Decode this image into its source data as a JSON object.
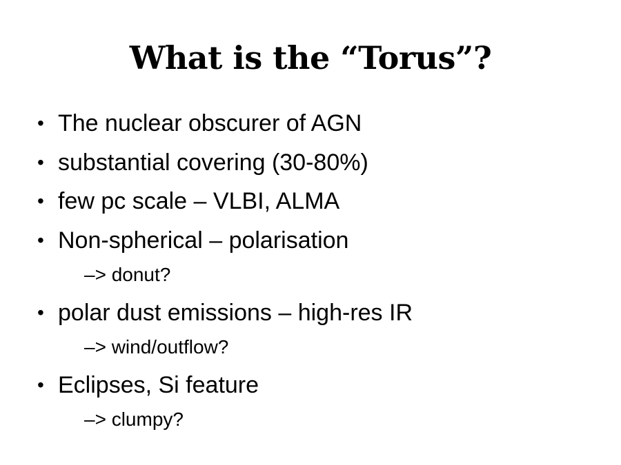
{
  "slide": {
    "title": "What is the “Torus”?",
    "bullet_symbol": "•",
    "items": [
      {
        "text": "The nuclear obscurer of AGN"
      },
      {
        "text": "substantial covering (30-80%)"
      },
      {
        "text": "few pc scale – VLBI, ALMA"
      },
      {
        "text": "Non-spherical – polarisation",
        "sub": "–> donut?"
      },
      {
        "text": "polar dust emissions – high-res IR",
        "sub": "–> wind/outflow?"
      },
      {
        "text": "Eclipses, Si feature",
        "sub": "–> clumpy?"
      }
    ]
  }
}
